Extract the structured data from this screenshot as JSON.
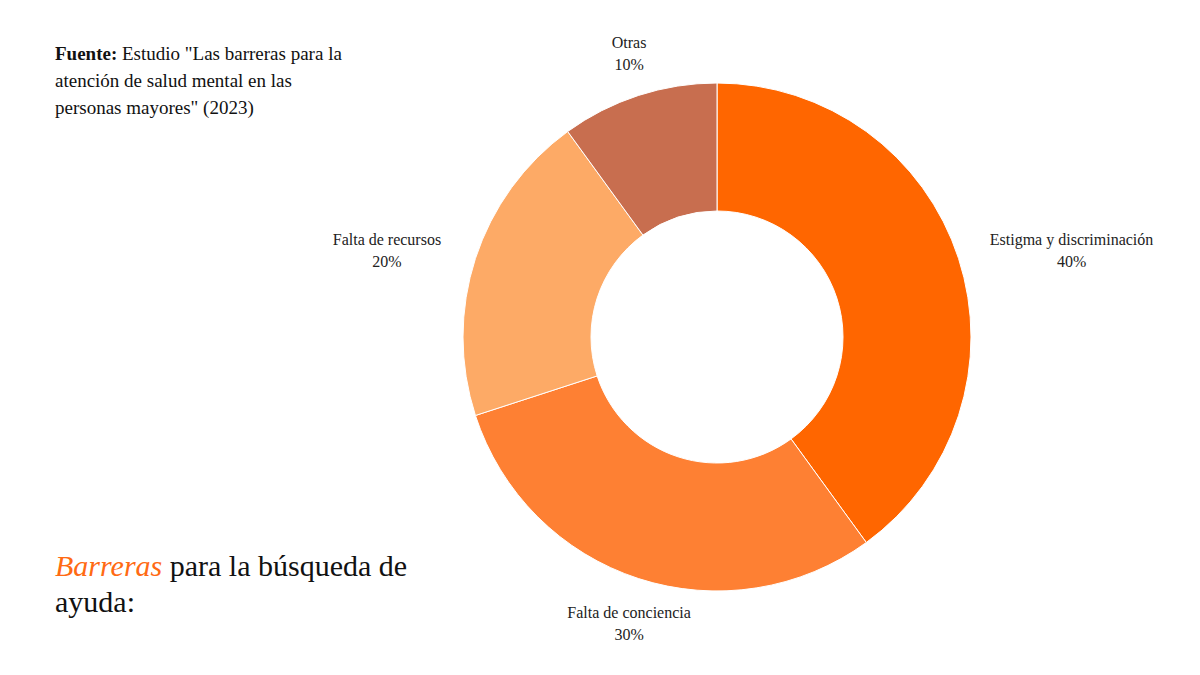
{
  "chart_data": {
    "type": "pie",
    "title": "Barreras para la búsqueda de ayuda:",
    "source": "Fuente: Estudio \"Las barreras para la atención de salud mental en las personas mayores\" (2023)",
    "categories": [
      "Estigma y discriminación",
      "Falta de conciencia",
      "Falta de recursos",
      "Otras"
    ],
    "values": [
      40,
      30,
      20,
      10
    ],
    "value_labels": [
      "40%",
      "30%",
      "20%",
      "10%"
    ],
    "colors": [
      "#ff6600",
      "#fe8033",
      "#fdaa66",
      "#c86e4f"
    ],
    "data_labels": true
  }
}
